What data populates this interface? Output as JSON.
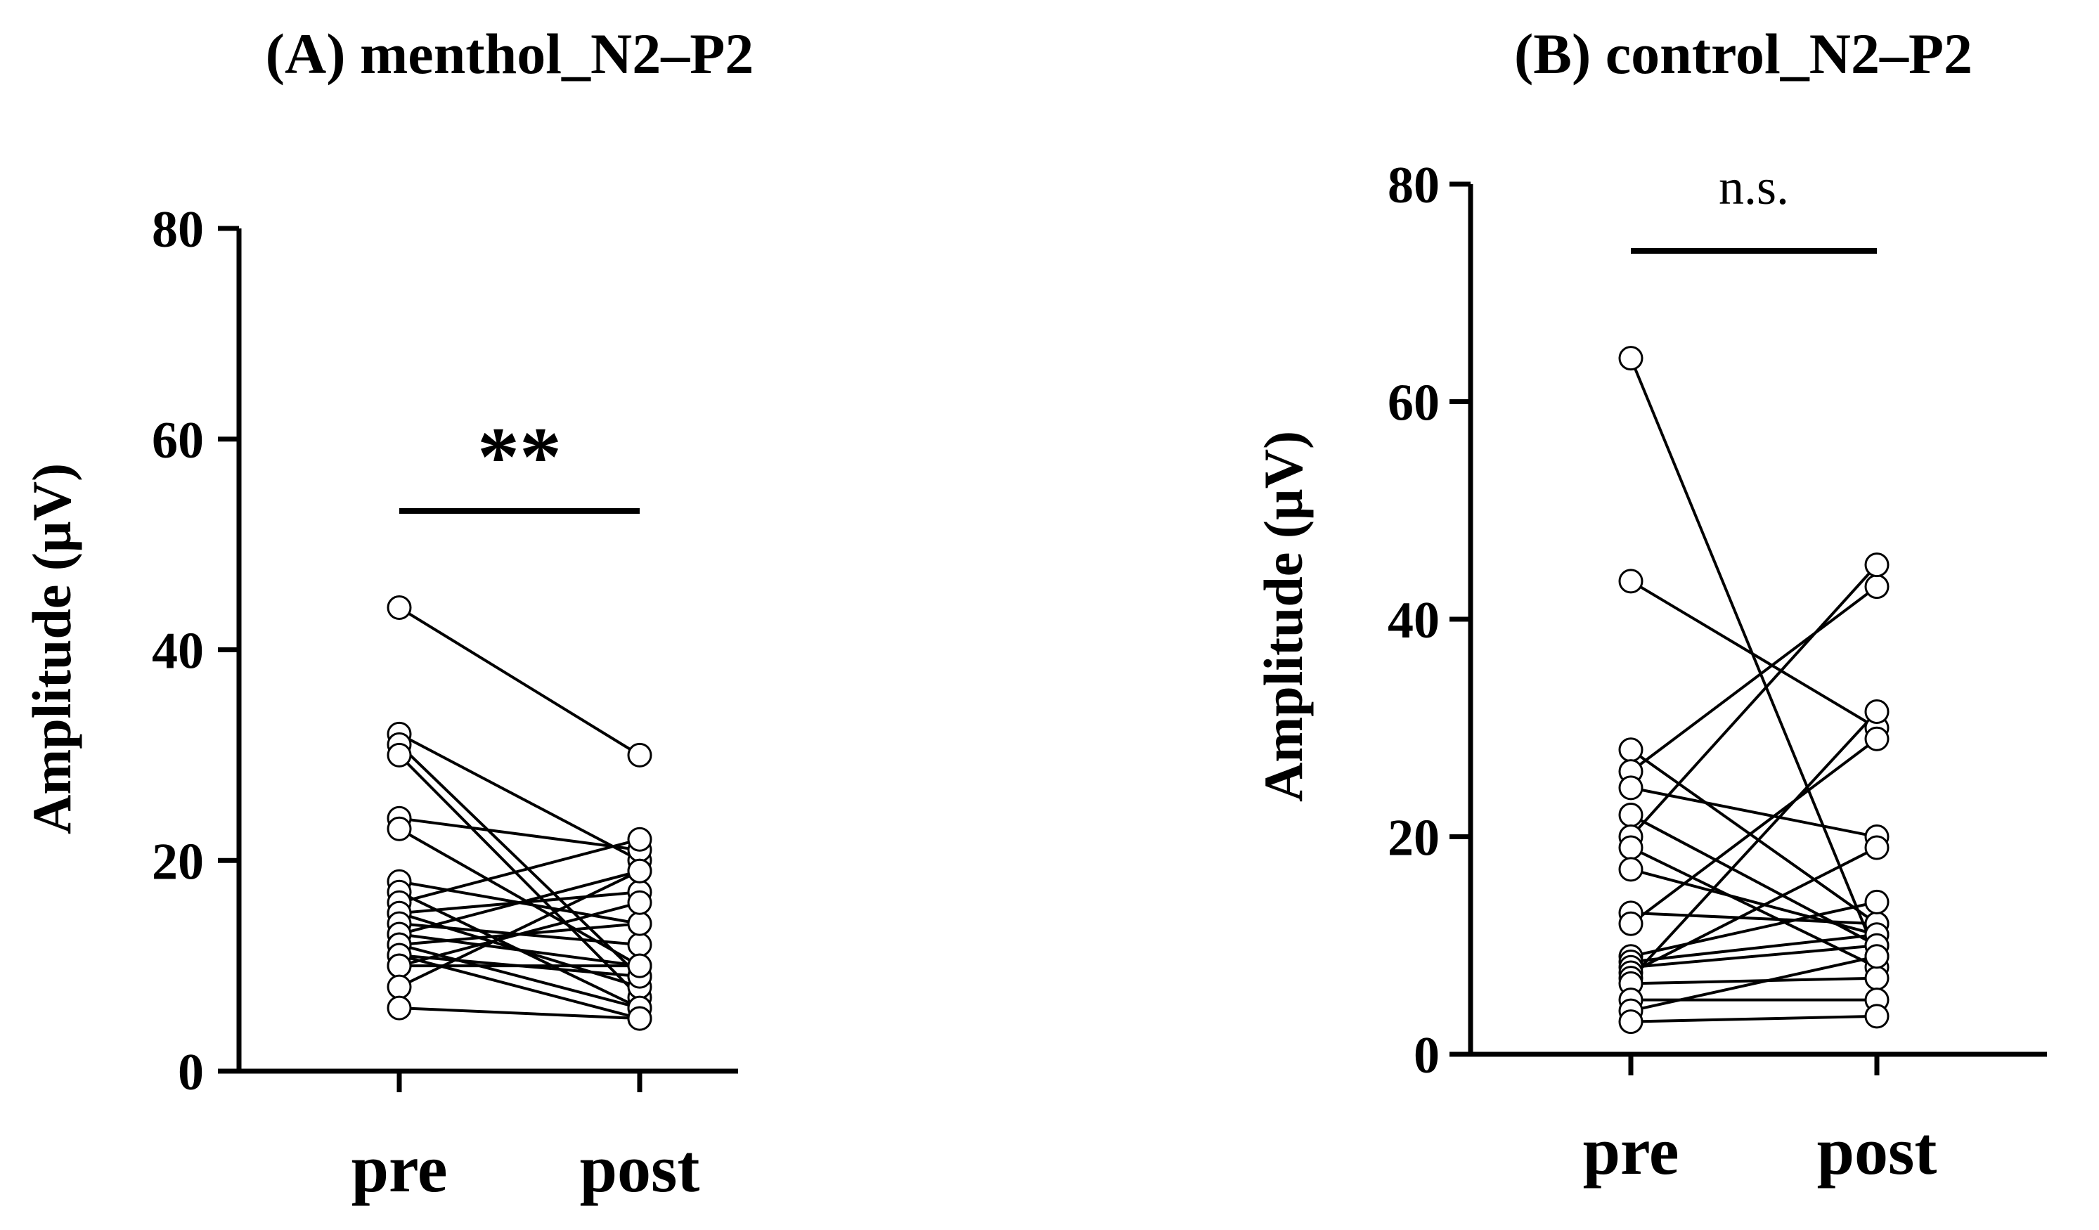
{
  "chart_data": [
    {
      "type": "paired-dot",
      "title": "(A) menthol_N2–P2",
      "xlabel": "",
      "ylabel": "Amplitude (µV)",
      "categories": [
        "pre",
        "post"
      ],
      "ylim": [
        0,
        80
      ],
      "yticks": [
        0,
        20,
        40,
        60,
        80
      ],
      "significance": "**",
      "pairs": [
        [
          44,
          30
        ],
        [
          32,
          20
        ],
        [
          31,
          9
        ],
        [
          30,
          7
        ],
        [
          24,
          21
        ],
        [
          23,
          10
        ],
        [
          18,
          14
        ],
        [
          17,
          6
        ],
        [
          16,
          22
        ],
        [
          15,
          17
        ],
        [
          15,
          8
        ],
        [
          14,
          12
        ],
        [
          13,
          10
        ],
        [
          13,
          19
        ],
        [
          12,
          6
        ],
        [
          12,
          14
        ],
        [
          11,
          9
        ],
        [
          11,
          5
        ],
        [
          10,
          16
        ],
        [
          10,
          10
        ],
        [
          8,
          19
        ],
        [
          6,
          5
        ]
      ]
    },
    {
      "type": "paired-dot",
      "title": "(B) control_N2–P2",
      "xlabel": "",
      "ylabel": "Amplitude (µV)",
      "categories": [
        "pre",
        "post"
      ],
      "ylim": [
        0,
        80
      ],
      "yticks": [
        0,
        20,
        40,
        60,
        80
      ],
      "significance": "n.s.",
      "pairs": [
        [
          64,
          9
        ],
        [
          43.5,
          30
        ],
        [
          28,
          12
        ],
        [
          26,
          43
        ],
        [
          24.5,
          20
        ],
        [
          22,
          10
        ],
        [
          20,
          45
        ],
        [
          19,
          8
        ],
        [
          17,
          11
        ],
        [
          13,
          12
        ],
        [
          12,
          29
        ],
        [
          9,
          14
        ],
        [
          8.5,
          11
        ],
        [
          8,
          10
        ],
        [
          7.5,
          19
        ],
        [
          7,
          31.5
        ],
        [
          6.5,
          7
        ],
        [
          5,
          5
        ],
        [
          4,
          9
        ],
        [
          3,
          3.5
        ]
      ]
    }
  ]
}
